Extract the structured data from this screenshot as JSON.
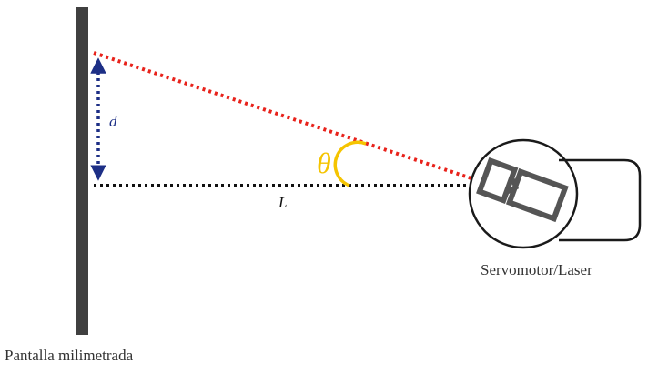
{
  "labels": {
    "distance": "d",
    "length": "L",
    "angle": "θ",
    "device": "Servomotor/Laser",
    "screen": "Pantalla milimetrada"
  },
  "colors": {
    "screen": "#404040",
    "laser_beam": "#e8221b",
    "baseline": "#111111",
    "distance_arrow": "#1d2f86",
    "angle_arc": "#f5c400",
    "device_outline": "#1a1a1a",
    "laser_body": "#555555"
  }
}
